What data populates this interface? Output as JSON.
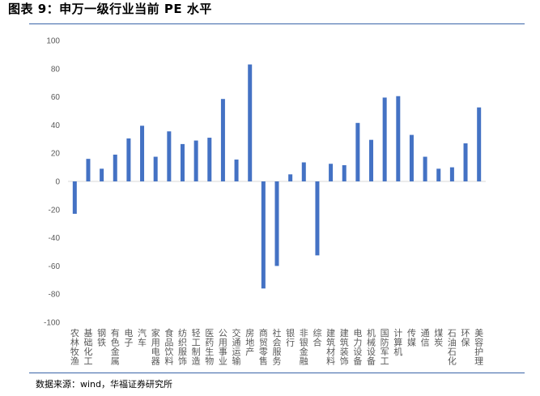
{
  "header": {
    "title": "图表 9：申万一级行业当前 PE 水平"
  },
  "footer": {
    "source": "数据来源：wind，华福证券研究所"
  },
  "chart_data": {
    "type": "bar",
    "categories": [
      "农林牧渔",
      "基础化工",
      "钢铁",
      "有色金属",
      "电子",
      "汽车",
      "家用电器",
      "食品饮料",
      "纺织服饰",
      "轻工制造",
      "医药生物",
      "公用事业",
      "交通运输",
      "房地产",
      "商贸零售",
      "社会服务",
      "银行",
      "非银金融",
      "综合",
      "建筑材料",
      "建筑装饰",
      "电力设备",
      "机械设备",
      "国防军工",
      "计算机",
      "传媒",
      "通信",
      "煤炭",
      "石油石化",
      "环保",
      "美容护理"
    ],
    "values": [
      -23,
      16,
      9,
      19,
      30.5,
      39.5,
      17.5,
      35.5,
      26.5,
      29,
      31,
      58.5,
      15.5,
      83,
      -76,
      -60,
      5,
      13.5,
      -52.5,
      12.5,
      11.5,
      41.5,
      29.5,
      59.5,
      60.5,
      33,
      17.5,
      9,
      10,
      27,
      52.5
    ],
    "ylim": [
      -100,
      100
    ],
    "yticks": [
      -100,
      -80,
      -60,
      -40,
      -20,
      0,
      20,
      40,
      60,
      80,
      100
    ],
    "bar_color": "#4472c4",
    "grid": false,
    "legend": "none"
  }
}
